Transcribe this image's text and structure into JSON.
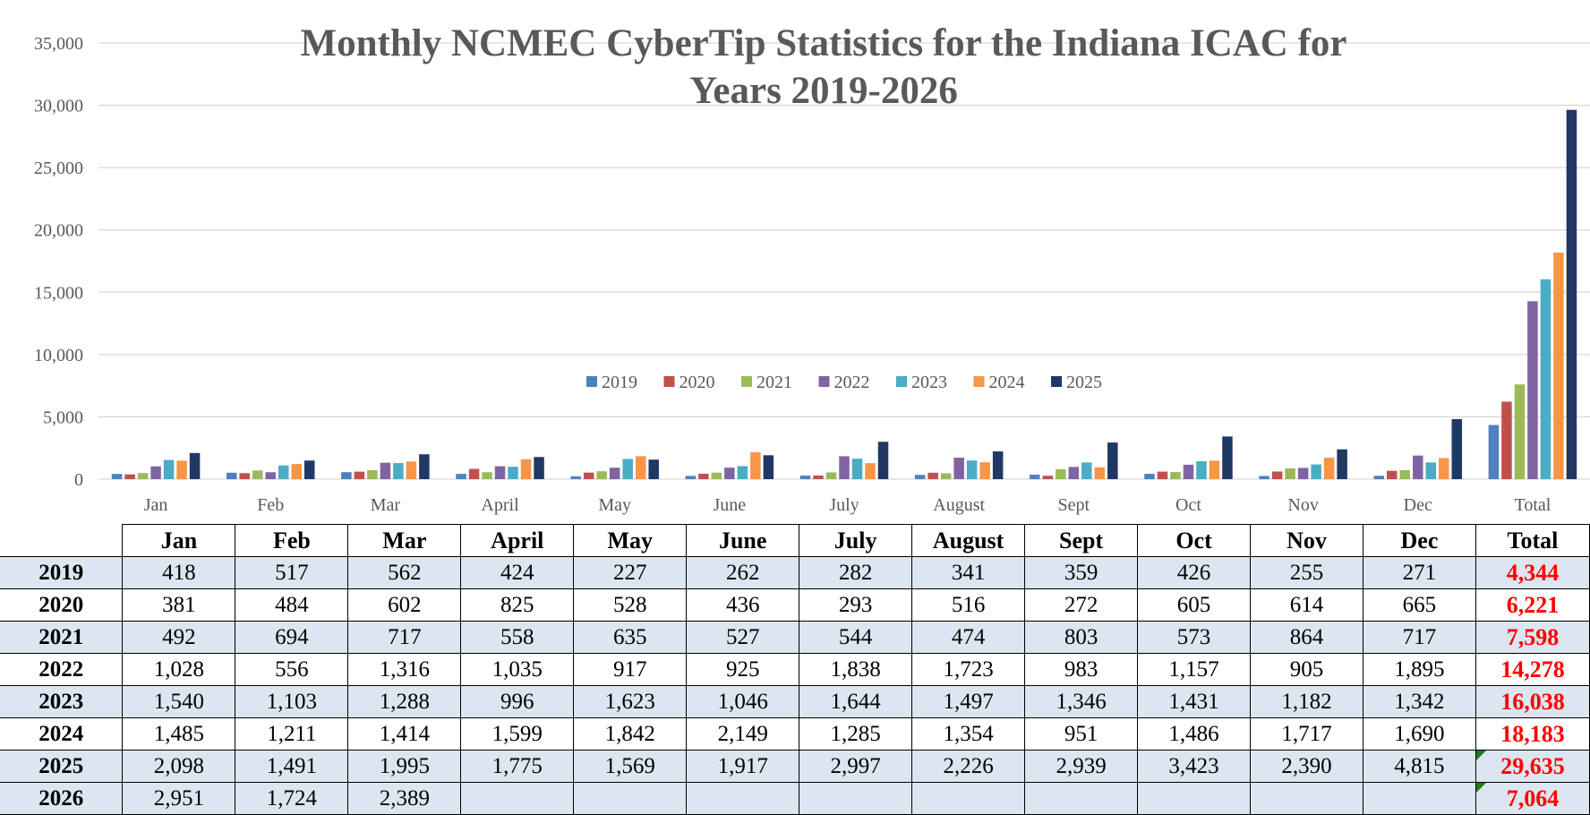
{
  "chart_data": {
    "type": "bar",
    "title": "Monthly NCMEC CyberTip Statistics for the Indiana ICAC for Years 2019-2026",
    "title_lines": [
      "Monthly NCMEC CyberTip Statistics for the Indiana ICAC for",
      "Years 2019-2026"
    ],
    "categories": [
      "Jan",
      "Feb",
      "Mar",
      "April",
      "May",
      "June",
      "July",
      "August",
      "Sept",
      "Oct",
      "Nov",
      "Dec",
      "Total"
    ],
    "ylim": [
      0,
      35000
    ],
    "yticks": [
      0,
      5000,
      10000,
      15000,
      20000,
      25000,
      30000,
      35000
    ],
    "ytick_labels": [
      "0",
      "5,000",
      "10,000",
      "15,000",
      "20,000",
      "25,000",
      "30,000",
      "35,000"
    ],
    "grid": true,
    "legend_position": "center",
    "series": [
      {
        "name": "2019",
        "color": "#4f81bd",
        "values": [
          418,
          517,
          562,
          424,
          227,
          262,
          282,
          341,
          359,
          426,
          255,
          271,
          4344
        ]
      },
      {
        "name": "2020",
        "color": "#c0504d",
        "values": [
          381,
          484,
          602,
          825,
          528,
          436,
          293,
          516,
          272,
          605,
          614,
          665,
          6221
        ]
      },
      {
        "name": "2021",
        "color": "#9bbb59",
        "values": [
          492,
          694,
          717,
          558,
          635,
          527,
          544,
          474,
          803,
          573,
          864,
          717,
          7598
        ]
      },
      {
        "name": "2022",
        "color": "#8064a2",
        "values": [
          1028,
          556,
          1316,
          1035,
          917,
          925,
          1838,
          1723,
          983,
          1157,
          905,
          1895,
          14278
        ]
      },
      {
        "name": "2023",
        "color": "#4bacc6",
        "values": [
          1540,
          1103,
          1288,
          996,
          1623,
          1046,
          1644,
          1497,
          1346,
          1431,
          1182,
          1342,
          16038
        ]
      },
      {
        "name": "2024",
        "color": "#f79646",
        "values": [
          1485,
          1211,
          1414,
          1599,
          1842,
          2149,
          1285,
          1354,
          951,
          1486,
          1717,
          1690,
          18183
        ]
      },
      {
        "name": "2025",
        "color": "#1f3864",
        "values": [
          2098,
          1491,
          1995,
          1775,
          1569,
          1917,
          2997,
          2226,
          2939,
          3423,
          2390,
          4815,
          29635
        ]
      }
    ]
  },
  "table": {
    "headers": [
      "Jan",
      "Feb",
      "Mar",
      "April",
      "May",
      "June",
      "July",
      "August",
      "Sept",
      "Oct",
      "Nov",
      "Dec",
      "Total"
    ],
    "rows": [
      {
        "year": "2019",
        "cells": [
          "418",
          "517",
          "562",
          "424",
          "227",
          "262",
          "282",
          "341",
          "359",
          "426",
          "255",
          "271"
        ],
        "total": "4,344",
        "shaded": true,
        "flag": false
      },
      {
        "year": "2020",
        "cells": [
          "381",
          "484",
          "602",
          "825",
          "528",
          "436",
          "293",
          "516",
          "272",
          "605",
          "614",
          "665"
        ],
        "total": "6,221",
        "shaded": false,
        "flag": false
      },
      {
        "year": "2021",
        "cells": [
          "492",
          "694",
          "717",
          "558",
          "635",
          "527",
          "544",
          "474",
          "803",
          "573",
          "864",
          "717"
        ],
        "total": "7,598",
        "shaded": true,
        "flag": false
      },
      {
        "year": "2022",
        "cells": [
          "1,028",
          "556",
          "1,316",
          "1,035",
          "917",
          "925",
          "1,838",
          "1,723",
          "983",
          "1,157",
          "905",
          "1,895"
        ],
        "total": "14,278",
        "shaded": false,
        "flag": false
      },
      {
        "year": "2023",
        "cells": [
          "1,540",
          "1,103",
          "1,288",
          "996",
          "1,623",
          "1,046",
          "1,644",
          "1,497",
          "1,346",
          "1,431",
          "1,182",
          "1,342"
        ],
        "total": "16,038",
        "shaded": true,
        "flag": false
      },
      {
        "year": "2024",
        "cells": [
          "1,485",
          "1,211",
          "1,414",
          "1,599",
          "1,842",
          "2,149",
          "1,285",
          "1,354",
          "951",
          "1,486",
          "1,717",
          "1,690"
        ],
        "total": "18,183",
        "shaded": false,
        "flag": false
      },
      {
        "year": "2025",
        "cells": [
          "2,098",
          "1,491",
          "1,995",
          "1,775",
          "1,569",
          "1,917",
          "2,997",
          "2,226",
          "2,939",
          "3,423",
          "2,390",
          "4,815"
        ],
        "total": "29,635",
        "shaded": true,
        "flag": true
      },
      {
        "year": "2026",
        "cells": [
          "2,951",
          "1,724",
          "2,389",
          "",
          "",
          "",
          "",
          "",
          "",
          "",
          "",
          ""
        ],
        "total": "7,064",
        "shaded": true,
        "flag": true
      }
    ]
  }
}
